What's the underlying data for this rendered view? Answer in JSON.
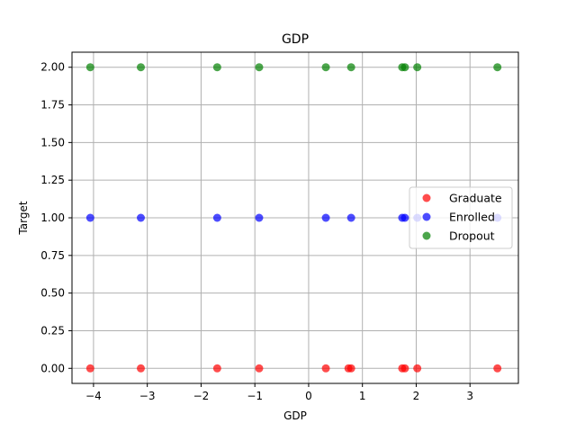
{
  "chart_data": {
    "type": "scatter",
    "title": "GDP",
    "xlabel": "GDP",
    "ylabel": "Target",
    "xlim": [
      -4.4,
      3.9
    ],
    "ylim": [
      -0.1,
      2.1
    ],
    "xticks": [
      -4,
      -3,
      -2,
      -1,
      0,
      1,
      2,
      3
    ],
    "xtick_labels": [
      "−4",
      "−3",
      "−2",
      "−1",
      "0",
      "1",
      "2",
      "3"
    ],
    "yticks": [
      0.0,
      0.25,
      0.5,
      0.75,
      1.0,
      1.25,
      1.5,
      1.75,
      2.0
    ],
    "ytick_labels": [
      "0.00",
      "0.25",
      "0.50",
      "0.75",
      "1.00",
      "1.25",
      "1.50",
      "1.75",
      "2.00"
    ],
    "grid": true,
    "legend_position": "center-right",
    "series": [
      {
        "name": "Graduate",
        "color": "#ff0000",
        "points": [
          {
            "x": -4.06,
            "y": 0
          },
          {
            "x": -3.12,
            "y": 0
          },
          {
            "x": -1.7,
            "y": 0
          },
          {
            "x": -0.92,
            "y": 0
          },
          {
            "x": 0.32,
            "y": 0
          },
          {
            "x": 0.74,
            "y": 0
          },
          {
            "x": 0.79,
            "y": 0
          },
          {
            "x": 1.74,
            "y": 0
          },
          {
            "x": 1.79,
            "y": 0
          },
          {
            "x": 2.02,
            "y": 0
          },
          {
            "x": 3.51,
            "y": 0
          }
        ]
      },
      {
        "name": "Enrolled",
        "color": "#0000ff",
        "points": [
          {
            "x": -4.06,
            "y": 1
          },
          {
            "x": -3.12,
            "y": 1
          },
          {
            "x": -1.7,
            "y": 1
          },
          {
            "x": -0.92,
            "y": 1
          },
          {
            "x": 0.32,
            "y": 1
          },
          {
            "x": 0.79,
            "y": 1
          },
          {
            "x": 1.74,
            "y": 1
          },
          {
            "x": 1.79,
            "y": 1
          },
          {
            "x": 2.02,
            "y": 1
          },
          {
            "x": 3.51,
            "y": 1
          }
        ]
      },
      {
        "name": "Dropout",
        "color": "#008000",
        "points": [
          {
            "x": -4.06,
            "y": 2
          },
          {
            "x": -3.12,
            "y": 2
          },
          {
            "x": -1.7,
            "y": 2
          },
          {
            "x": -0.92,
            "y": 2
          },
          {
            "x": 0.32,
            "y": 2
          },
          {
            "x": 0.79,
            "y": 2
          },
          {
            "x": 1.74,
            "y": 2
          },
          {
            "x": 1.79,
            "y": 2
          },
          {
            "x": 2.02,
            "y": 2
          },
          {
            "x": 3.51,
            "y": 2
          }
        ]
      }
    ]
  }
}
